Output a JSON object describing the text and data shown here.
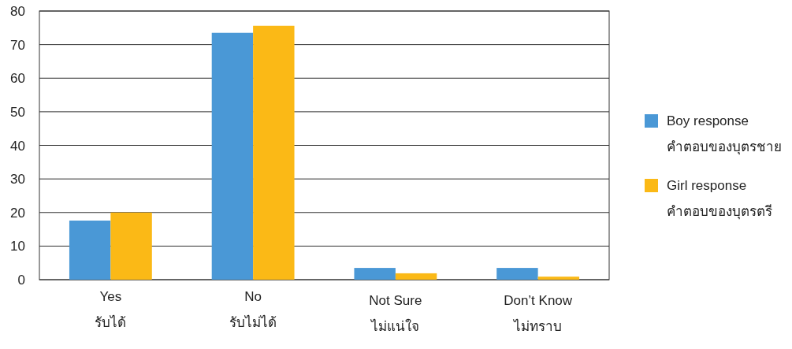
{
  "chart_data": {
    "type": "bar",
    "categories": [
      "Yes\nรับได้",
      "No\nรับไม่ได้",
      "Not Sure\nไม่แน่ใจ",
      "Don’t Know\nไม่ทราบ"
    ],
    "series": [
      {
        "name": "Boy response\nคำตอบของบุตรชาย",
        "color": "#4a98d6",
        "values": [
          17.6,
          73.5,
          3.5,
          3.5
        ]
      },
      {
        "name": "Girl response\nคำตอบของบุตรตรี",
        "color": "#fbb916",
        "values": [
          20,
          75.6,
          1.9,
          0.9
        ]
      }
    ],
    "ylim": [
      0,
      80
    ],
    "yticks": [
      0,
      10,
      20,
      30,
      40,
      50,
      60,
      70,
      80
    ],
    "grid": "y",
    "legend": "right"
  }
}
